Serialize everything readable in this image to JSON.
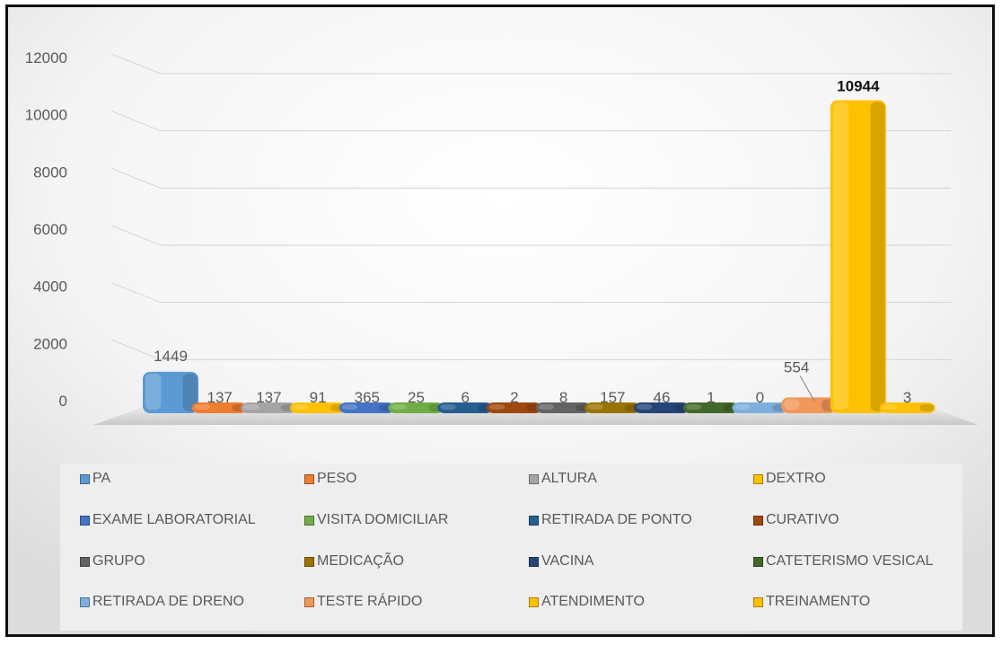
{
  "chart_data": {
    "type": "bar",
    "categories": [
      "PA",
      "PESO",
      "ALTURA",
      "DEXTRO",
      "EXAME LABORATORIAL",
      "VISITA DOMICILIAR",
      "RETIRADA DE PONTO",
      "CURATIVO",
      "GRUPO",
      "MEDICAÇÃO",
      "VACINA",
      "CATETERISMO VESICAL",
      "RETIRADA DE DRENO",
      "TESTE RÁPIDO",
      "ATENDIMENTO",
      "TREINAMENTO"
    ],
    "values": [
      1449,
      137,
      137,
      91,
      365,
      25,
      6,
      2,
      8,
      157,
      46,
      1,
      0,
      554,
      10944,
      3
    ],
    "data_labels": [
      "1449",
      "137",
      "137",
      "91",
      "365",
      "25",
      "6",
      "2",
      "8",
      "157",
      "46",
      "1",
      "0",
      "554",
      "10944",
      "3"
    ],
    "colors": [
      "#5b9bd5",
      "#ed7d31",
      "#a5a5a5",
      "#ffc000",
      "#4472c4",
      "#70ad47",
      "#255e91",
      "#9e480e",
      "#636363",
      "#997300",
      "#264478",
      "#43682b",
      "#7cafdd",
      "#f1975a",
      "#ffc000",
      "#ffc000"
    ],
    "ylim": [
      0,
      12000
    ],
    "yticks": [
      "0",
      "2000",
      "4000",
      "6000",
      "8000",
      "10000",
      "12000"
    ],
    "title": "",
    "xlabel": "",
    "ylabel": "",
    "legend_position": "bottom",
    "grid": true
  }
}
